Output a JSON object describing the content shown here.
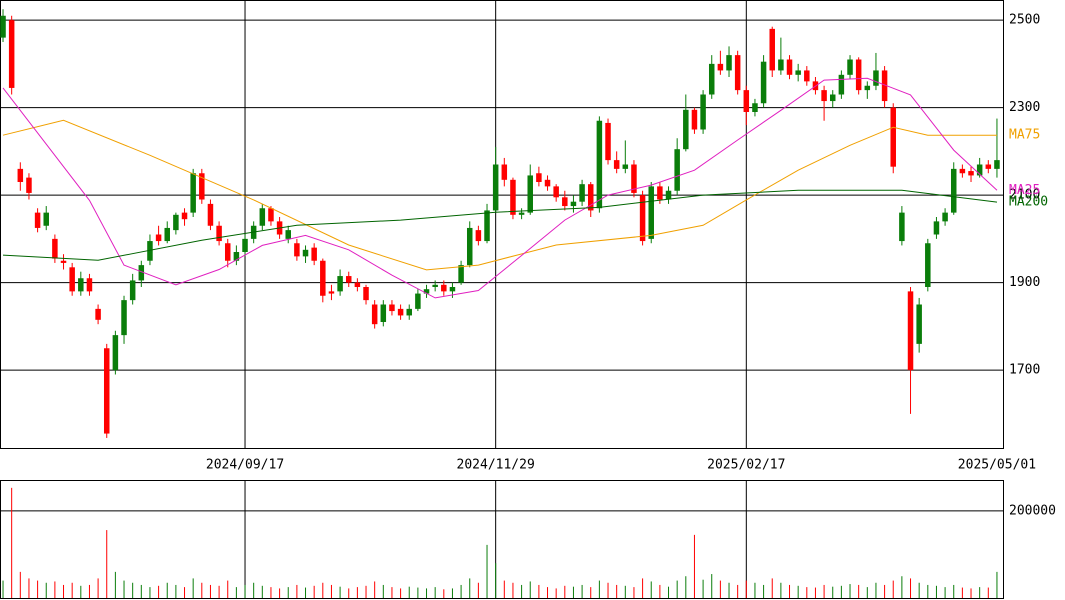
{
  "chart_data": {
    "type": "candlestick",
    "xlim": [
      -0.35,
      115.7
    ],
    "xticks": [
      {
        "value": 28,
        "label": "2024/09/17"
      },
      {
        "value": 57,
        "label": "2024/11/29"
      },
      {
        "value": 86,
        "label": "2025/02/17"
      },
      {
        "value": 115,
        "label": "2025/05/01"
      }
    ],
    "ylim": [
      1522,
      2546
    ],
    "yticks": [
      1700,
      1900,
      2100,
      2300,
      2500
    ],
    "volume_ylim": [
      0,
      271000
    ],
    "volume_yticks": [
      200000
    ],
    "up_color": "#0a7d0a",
    "down_color": "#ff0000",
    "open": [
      2460,
      2500,
      2160,
      2140,
      2060,
      2030,
      2000,
      1950,
      1935,
      1880,
      1910,
      1840,
      1750,
      1700,
      1780,
      1860,
      1905,
      1950,
      2010,
      1995,
      2020,
      2060,
      2060,
      2150,
      2080,
      2030,
      1990,
      1950,
      1970,
      2000,
      2030,
      2070,
      2040,
      2000,
      1990,
      1960,
      1980,
      1950,
      1880,
      1880,
      1915,
      1900,
      1890,
      1850,
      1810,
      1850,
      1840,
      1825,
      1840,
      1875,
      1890,
      1895,
      1880,
      1900,
      1940,
      2020,
      1995,
      2065,
      2170,
      2135,
      2055,
      2060,
      2150,
      2135,
      2120,
      2095,
      2075,
      2085,
      2125,
      2070,
      2265,
      2180,
      2160,
      2170,
      2100,
      2000,
      2120,
      2090,
      2110,
      2205,
      2295,
      2250,
      2330,
      2400,
      2385,
      2420,
      2340,
      2290,
      2310,
      2480,
      2385,
      2410,
      2375,
      2385,
      2360,
      2340,
      2315,
      2330,
      2375,
      2410,
      2340,
      2350,
      2385,
      2300,
      1995,
      1880,
      1760,
      1890,
      2010,
      2040,
      2060,
      2160,
      2155,
      2145,
      2170,
      2160
    ],
    "high": [
      2525,
      2510,
      2175,
      2150,
      2070,
      2075,
      2010,
      1965,
      1945,
      1925,
      1920,
      1850,
      1760,
      1790,
      1870,
      1920,
      1950,
      2010,
      2030,
      2040,
      2060,
      2070,
      2160,
      2160,
      2090,
      2040,
      2000,
      1985,
      2010,
      2040,
      2080,
      2075,
      2050,
      2030,
      2000,
      1985,
      1990,
      1955,
      1895,
      1930,
      1925,
      1910,
      1895,
      1860,
      1860,
      1860,
      1850,
      1850,
      1885,
      1895,
      1905,
      1905,
      1900,
      1950,
      2040,
      2030,
      2080,
      2210,
      2185,
      2140,
      2070,
      2170,
      2165,
      2145,
      2125,
      2110,
      2100,
      2135,
      2130,
      2280,
      2275,
      2200,
      2225,
      2180,
      2110,
      2130,
      2130,
      2120,
      2230,
      2330,
      2300,
      2340,
      2420,
      2430,
      2440,
      2430,
      2350,
      2320,
      2420,
      2485,
      2460,
      2420,
      2400,
      2395,
      2370,
      2350,
      2340,
      2385,
      2420,
      2415,
      2360,
      2425,
      2395,
      2310,
      2075,
      1890,
      1865,
      2000,
      2050,
      2070,
      2175,
      2170,
      2165,
      2185,
      2180,
      2275
    ],
    "low": [
      2450,
      2330,
      2110,
      2090,
      2015,
      2020,
      1945,
      1930,
      1870,
      1870,
      1870,
      1805,
      1545,
      1690,
      1760,
      1850,
      1890,
      1940,
      1985,
      1990,
      2010,
      2030,
      2050,
      2080,
      2020,
      1985,
      1935,
      1940,
      1960,
      1990,
      2020,
      2030,
      2000,
      1990,
      1950,
      1945,
      1940,
      1855,
      1860,
      1870,
      1890,
      1880,
      1850,
      1795,
      1800,
      1825,
      1815,
      1815,
      1835,
      1865,
      1880,
      1870,
      1865,
      1895,
      1935,
      1985,
      1990,
      2060,
      2120,
      2045,
      2045,
      2055,
      2120,
      2110,
      2085,
      2065,
      2060,
      2075,
      2050,
      2060,
      2170,
      2150,
      2150,
      2095,
      1985,
      1990,
      2080,
      2080,
      2100,
      2200,
      2240,
      2240,
      2320,
      2375,
      2370,
      2330,
      2260,
      2280,
      2300,
      2370,
      2375,
      2365,
      2360,
      2350,
      2330,
      2270,
      2300,
      2320,
      2365,
      2330,
      2320,
      2340,
      2300,
      2150,
      1985,
      1600,
      1740,
      1880,
      2000,
      2030,
      2055,
      2140,
      2130,
      2140,
      2150,
      2140
    ],
    "close": [
      2510,
      2345,
      2130,
      2105,
      2025,
      2060,
      1955,
      1945,
      1880,
      1910,
      1880,
      1815,
      1555,
      1780,
      1860,
      1905,
      1940,
      1995,
      1995,
      2025,
      2055,
      2045,
      2150,
      2090,
      2030,
      1995,
      1950,
      1970,
      2000,
      2030,
      2070,
      2040,
      2010,
      2020,
      1960,
      1975,
      1950,
      1870,
      1875,
      1915,
      1900,
      1890,
      1860,
      1805,
      1850,
      1835,
      1825,
      1840,
      1875,
      1885,
      1895,
      1880,
      1890,
      1940,
      2025,
      1995,
      2065,
      2170,
      2135,
      2055,
      2060,
      2145,
      2130,
      2120,
      2095,
      2075,
      2085,
      2125,
      2065,
      2270,
      2180,
      2160,
      2170,
      2105,
      1995,
      2120,
      2090,
      2110,
      2205,
      2295,
      2250,
      2330,
      2400,
      2385,
      2420,
      2340,
      2290,
      2310,
      2405,
      2385,
      2410,
      2375,
      2385,
      2360,
      2340,
      2315,
      2330,
      2375,
      2410,
      2340,
      2350,
      2385,
      2315,
      2165,
      2060,
      1700,
      1850,
      1990,
      2040,
      2060,
      2160,
      2150,
      2145,
      2170,
      2160,
      2180
    ],
    "volume": [
      40000,
      253000,
      60000,
      45000,
      40000,
      35000,
      38000,
      30000,
      35000,
      28000,
      30000,
      45000,
      156000,
      60000,
      40000,
      35000,
      30000,
      25000,
      28000,
      35000,
      30000,
      25000,
      45000,
      35000,
      30000,
      28000,
      40000,
      25000,
      30000,
      35000,
      28000,
      25000,
      22000,
      25000,
      30000,
      24000,
      28000,
      35000,
      30000,
      26000,
      22000,
      25000,
      28000,
      38000,
      30000,
      25000,
      22000,
      26000,
      24000,
      22000,
      25000,
      20000,
      22000,
      30000,
      45000,
      35000,
      122000,
      80000,
      40000,
      35000,
      30000,
      38000,
      30000,
      25000,
      22000,
      28000,
      26000,
      30000,
      25000,
      40000,
      35000,
      30000,
      28000,
      25000,
      45000,
      38000,
      30000,
      26000,
      40000,
      50000,
      145000,
      42000,
      55000,
      40000,
      35000,
      30000,
      40000,
      35000,
      30000,
      45000,
      35000,
      30000,
      28000,
      25000,
      24000,
      30000,
      26000,
      28000,
      32000,
      30000,
      25000,
      35000,
      30000,
      40000,
      50000,
      45000,
      35000,
      30000,
      28000,
      25000,
      30000,
      24000,
      22000,
      25000,
      24000,
      60000
    ],
    "series": [
      {
        "name": "MA75",
        "color": "#f0a000",
        "x": [
          0,
          7,
          17,
          29,
          40,
          49,
          55,
          64,
          75,
          81,
          86,
          92,
          98,
          103,
          107,
          115
        ],
        "values": [
          2237,
          2271,
          2191,
          2089,
          1986,
          1929,
          1940,
          1986,
          2008,
          2031,
          2089,
          2157,
          2214,
          2255,
          2237,
          2237
        ]
      },
      {
        "name": "MA25",
        "color": "#e020c0",
        "x": [
          0,
          10,
          14,
          20,
          25,
          30,
          35,
          40,
          45,
          50,
          55,
          60,
          65,
          70,
          75,
          80,
          85,
          90,
          95,
          100,
          105,
          110,
          115
        ],
        "values": [
          2345,
          2088,
          1940,
          1895,
          1930,
          1985,
          2008,
          1975,
          1917,
          1865,
          1882,
          1962,
          2043,
          2100,
          2123,
          2157,
          2226,
          2294,
          2363,
          2367,
          2329,
          2203,
          2111
        ]
      },
      {
        "name": "MA200",
        "color": "#006400",
        "x": [
          0,
          11,
          23,
          34,
          46,
          57,
          69,
          81,
          92,
          104,
          115
        ],
        "values": [
          1963,
          1951,
          1997,
          2031,
          2043,
          2061,
          2072,
          2100,
          2111,
          2111,
          2084
        ]
      }
    ]
  }
}
